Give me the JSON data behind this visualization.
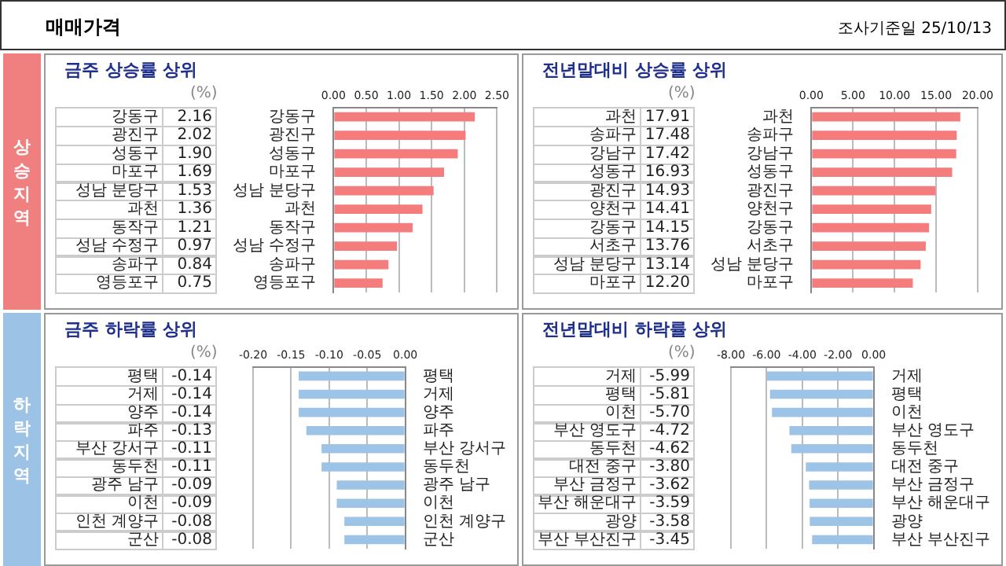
{
  "chart_data": [
    {
      "type": "other",
      "title": "매매가격",
      "annotations": [
        "조사기준일 25/10/13"
      ]
    },
    {
      "type": "other",
      "title": "상승지역"
    },
    {
      "type": "bar",
      "orientation": "horizontal",
      "title": "금주 상승률 상위",
      "annotations": [
        "(%)"
      ],
      "grid": "x",
      "color": "#f47c7c",
      "categories": [
        "강동구",
        "광진구",
        "성동구",
        "마포구",
        "성남 분당구",
        "과천",
        "동작구",
        "성남 수정구",
        "송파구",
        "영등포구"
      ],
      "values": [
        2.16,
        2.02,
        1.9,
        1.69,
        1.53,
        1.36,
        1.21,
        0.97,
        0.84,
        0.75
      ],
      "value_labels": [
        "2.16",
        "2.02",
        "1.90",
        "1.69",
        "1.53",
        "1.36",
        "1.21",
        "0.97",
        "0.84",
        "0.75"
      ],
      "xlim": [
        0,
        2.5
      ],
      "xticks": [
        {
          "value": 0,
          "label": "0.00"
        },
        {
          "value": 0.5,
          "label": "0.50"
        },
        {
          "value": 1,
          "label": "1.00"
        },
        {
          "value": 1.5,
          "label": "1.50"
        },
        {
          "value": 2,
          "label": "2.00"
        },
        {
          "value": 2.5,
          "label": "2.50"
        }
      ]
    },
    {
      "type": "bar",
      "orientation": "horizontal",
      "title": "전년말대비 상승률 상위",
      "annotations": [
        "(%)"
      ],
      "grid": "x",
      "color": "#f47c7c",
      "categories": [
        "과천",
        "송파구",
        "강남구",
        "성동구",
        "광진구",
        "양천구",
        "강동구",
        "서초구",
        "성남 분당구",
        "마포구"
      ],
      "values": [
        17.91,
        17.48,
        17.42,
        16.93,
        14.93,
        14.41,
        14.15,
        13.76,
        13.14,
        12.2
      ],
      "value_labels": [
        "17.91",
        "17.48",
        "17.42",
        "16.93",
        "14.93",
        "14.41",
        "14.15",
        "13.76",
        "13.14",
        "12.20"
      ],
      "xlim": [
        0,
        20
      ],
      "xticks": [
        {
          "value": 0,
          "label": "0.00"
        },
        {
          "value": 5,
          "label": "5.00"
        },
        {
          "value": 10,
          "label": "10.00"
        },
        {
          "value": 15,
          "label": "15.00"
        },
        {
          "value": 20,
          "label": "20.00"
        }
      ]
    },
    {
      "type": "other",
      "title": "하락지역"
    },
    {
      "type": "bar",
      "orientation": "horizontal",
      "title": "금주 하락률 상위",
      "annotations": [
        "(%)"
      ],
      "grid": "x",
      "color": "#9dc3e6",
      "categories": [
        "평택",
        "거제",
        "양주",
        "파주",
        "부산 강서구",
        "동두천",
        "광주 남구",
        "이천",
        "인천 계양구",
        "군산"
      ],
      "values": [
        -0.14,
        -0.14,
        -0.14,
        -0.13,
        -0.11,
        -0.11,
        -0.09,
        -0.09,
        -0.08,
        -0.08
      ],
      "value_labels": [
        "-0.14",
        "-0.14",
        "-0.14",
        "-0.13",
        "-0.11",
        "-0.11",
        "-0.09",
        "-0.09",
        "-0.08",
        "-0.08"
      ],
      "xlim": [
        -0.2,
        0
      ],
      "xticks": [
        {
          "value": -0.2,
          "label": "-0.20"
        },
        {
          "value": -0.15,
          "label": "-0.15"
        },
        {
          "value": -0.1,
          "label": "-0.10"
        },
        {
          "value": -0.05,
          "label": "-0.05"
        },
        {
          "value": 0,
          "label": "0.00"
        }
      ]
    },
    {
      "type": "bar",
      "orientation": "horizontal",
      "title": "전년말대비 하락률 상위",
      "annotations": [
        "(%)"
      ],
      "grid": "x",
      "color": "#9dc3e6",
      "categories": [
        "거제",
        "평택",
        "이천",
        "부산 영도구",
        "동두천",
        "대전 중구",
        "부산 금정구",
        "부산 해운대구",
        "광양",
        "부산 부산진구"
      ],
      "values": [
        -5.99,
        -5.81,
        -5.7,
        -4.72,
        -4.62,
        -3.8,
        -3.62,
        -3.59,
        -3.58,
        -3.45
      ],
      "value_labels": [
        "-5.99",
        "-5.81",
        "-5.70",
        "-4.72",
        "-4.62",
        "-3.80",
        "-3.62",
        "-3.59",
        "-3.58",
        "-3.45"
      ],
      "xlim": [
        -8,
        0
      ],
      "xticks": [
        {
          "value": -8,
          "label": "-8.00"
        },
        {
          "value": -6,
          "label": "-6.00"
        },
        {
          "value": -4,
          "label": "-4.00"
        },
        {
          "value": -2,
          "label": "-2.00"
        },
        {
          "value": 0,
          "label": "0.00"
        }
      ]
    }
  ]
}
